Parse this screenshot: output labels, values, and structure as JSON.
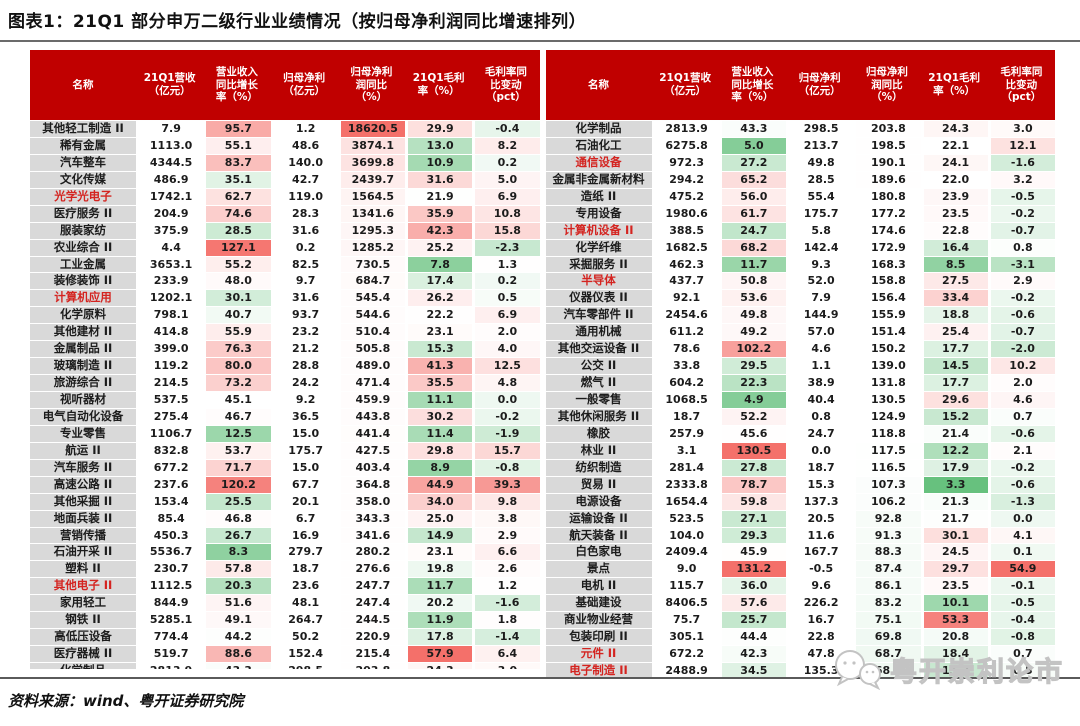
{
  "title": "图表1：21Q1 部分申万二级行业业绩情况（按归母净利润同比增速排列）",
  "source": "资料来源：wind、粤开证券研究院",
  "watermark": "粤开崇利论市",
  "columns": [
    "名称",
    "21Q1营收\n（亿元）",
    "营业收入\n同比增长\n率（%）",
    "归母净利\n（亿元）",
    "归母净利\n润同比\n（%）",
    "21Q1毛利\n率（%）",
    "毛利率同\n比变动\n（pct）"
  ],
  "colors": {
    "header_bg": "#c00000",
    "name_bg": "#d9d9d9",
    "highlight_name_text": "#d42420",
    "heat_red": "#f4706a",
    "heat_green": "#67c17e"
  },
  "heatmap": {
    "note": "value-index -> color scale (green below mid, red above mid)",
    "columns": {
      "1": {
        "min": -5,
        "mid": 45,
        "max": 131.2
      },
      "3": {
        "min": -400,
        "mid": 120,
        "max": 18620.5
      },
      "4": {
        "min": 3.3,
        "mid": 22,
        "max": 57.9
      },
      "5": {
        "min": -8,
        "mid": 1,
        "max": 54.9
      }
    }
  },
  "left_rows": [
    {
      "name": "其他轻工制造 II",
      "red": false,
      "values": [
        7.9,
        95.7,
        1.2,
        18620.5,
        29.9,
        -0.4
      ]
    },
    {
      "name": "稀有金属",
      "red": false,
      "values": [
        1113.0,
        55.1,
        48.6,
        3874.1,
        13.0,
        8.2
      ]
    },
    {
      "name": "汽车整车",
      "red": false,
      "values": [
        4344.5,
        83.7,
        140.0,
        3699.8,
        10.9,
        0.2
      ]
    },
    {
      "name": "文化传媒",
      "red": false,
      "values": [
        486.9,
        35.1,
        42.7,
        2439.7,
        31.6,
        5.0
      ]
    },
    {
      "name": "光学光电子",
      "red": true,
      "values": [
        1742.1,
        62.7,
        119.0,
        1564.5,
        21.9,
        6.9
      ]
    },
    {
      "name": "医疗服务 II",
      "red": false,
      "values": [
        204.9,
        74.6,
        28.3,
        1341.6,
        35.9,
        10.8
      ]
    },
    {
      "name": "服装家纺",
      "red": false,
      "values": [
        375.9,
        28.5,
        31.6,
        1295.3,
        42.3,
        15.8
      ]
    },
    {
      "name": "农业综合 II",
      "red": false,
      "values": [
        4.4,
        127.1,
        0.2,
        1285.2,
        25.2,
        -2.3
      ]
    },
    {
      "name": "工业金属",
      "red": false,
      "values": [
        3653.1,
        55.2,
        82.5,
        730.5,
        7.8,
        1.3
      ]
    },
    {
      "name": "装修装饰 II",
      "red": false,
      "values": [
        233.9,
        48.0,
        9.7,
        684.7,
        17.4,
        0.2
      ]
    },
    {
      "name": "计算机应用",
      "red": true,
      "values": [
        1202.1,
        30.1,
        31.6,
        545.4,
        26.2,
        0.5
      ]
    },
    {
      "name": "化学原料",
      "red": false,
      "values": [
        798.1,
        40.7,
        93.7,
        544.6,
        22.2,
        6.9
      ]
    },
    {
      "name": "其他建材 II",
      "red": false,
      "values": [
        414.8,
        55.9,
        23.2,
        510.4,
        23.1,
        2.0
      ]
    },
    {
      "name": "金属制品 II",
      "red": false,
      "values": [
        399.0,
        76.3,
        21.2,
        505.8,
        15.3,
        4.0
      ]
    },
    {
      "name": "玻璃制造 II",
      "red": false,
      "values": [
        119.2,
        80.0,
        28.8,
        489.0,
        41.3,
        12.5
      ]
    },
    {
      "name": "旅游综合 II",
      "red": false,
      "values": [
        214.5,
        73.2,
        24.2,
        471.4,
        35.5,
        4.8
      ]
    },
    {
      "name": "视听器材",
      "red": false,
      "values": [
        537.5,
        45.1,
        9.2,
        459.9,
        11.1,
        0.0
      ]
    },
    {
      "name": "电气自动化设备",
      "red": false,
      "values": [
        275.4,
        46.7,
        36.5,
        443.8,
        30.2,
        -0.2
      ]
    },
    {
      "name": "专业零售",
      "red": false,
      "values": [
        1106.7,
        12.5,
        15.0,
        441.4,
        11.4,
        -1.9
      ]
    },
    {
      "name": "航运 II",
      "red": false,
      "values": [
        832.8,
        53.7,
        175.7,
        427.5,
        29.8,
        15.7
      ]
    },
    {
      "name": "汽车服务 II",
      "red": false,
      "values": [
        677.2,
        71.7,
        15.0,
        403.4,
        8.9,
        -0.8
      ]
    },
    {
      "name": "高速公路 II",
      "red": false,
      "values": [
        237.6,
        120.2,
        67.7,
        364.8,
        44.9,
        39.3
      ]
    },
    {
      "name": "其他采掘 II",
      "red": false,
      "values": [
        153.4,
        25.5,
        20.1,
        358.0,
        34.0,
        9.8
      ]
    },
    {
      "name": "地面兵装 II",
      "red": false,
      "values": [
        85.4,
        46.8,
        6.7,
        343.3,
        25.0,
        3.8
      ]
    },
    {
      "name": "营销传播",
      "red": false,
      "values": [
        450.3,
        26.7,
        16.9,
        341.6,
        14.9,
        2.9
      ]
    },
    {
      "name": "石油开采 II",
      "red": false,
      "values": [
        5536.7,
        8.3,
        279.7,
        280.2,
        23.1,
        6.6
      ]
    },
    {
      "name": "塑料 II",
      "red": false,
      "values": [
        230.7,
        57.8,
        18.7,
        276.6,
        19.8,
        2.6
      ]
    },
    {
      "name": "其他电子 II",
      "red": true,
      "values": [
        1112.5,
        20.3,
        23.6,
        247.7,
        11.7,
        1.2
      ]
    },
    {
      "name": "家用轻工",
      "red": false,
      "values": [
        844.9,
        51.6,
        48.1,
        247.4,
        20.2,
        -1.6
      ]
    },
    {
      "name": "钢铁 II",
      "red": false,
      "values": [
        5285.1,
        49.1,
        264.7,
        244.5,
        11.9,
        1.8
      ]
    },
    {
      "name": "高低压设备",
      "red": false,
      "values": [
        774.4,
        44.2,
        50.2,
        220.9,
        17.8,
        -1.4
      ]
    },
    {
      "name": "医疗器械 II",
      "red": false,
      "values": [
        519.7,
        88.6,
        152.4,
        215.4,
        57.9,
        6.4
      ]
    }
  ],
  "left_partial_row": {
    "name": "化学制品",
    "red": false,
    "values": [
      2813.9,
      43.3,
      298.5,
      203.8,
      24.3,
      3.0
    ]
  },
  "right_rows": [
    {
      "name": "化学制品",
      "red": false,
      "values": [
        2813.9,
        43.3,
        298.5,
        203.8,
        24.3,
        3.0
      ]
    },
    {
      "name": "石油化工",
      "red": false,
      "values": [
        6275.8,
        5.0,
        213.7,
        198.5,
        22.1,
        12.1
      ]
    },
    {
      "name": "通信设备",
      "red": true,
      "values": [
        972.3,
        27.2,
        49.8,
        190.1,
        24.1,
        -1.6
      ]
    },
    {
      "name": "金属非金属新材料",
      "red": false,
      "values": [
        294.2,
        65.2,
        28.5,
        189.6,
        22.0,
        3.2
      ]
    },
    {
      "name": "造纸 II",
      "red": false,
      "values": [
        475.2,
        56.0,
        55.4,
        180.8,
        23.9,
        -0.5
      ]
    },
    {
      "name": "专用设备",
      "red": false,
      "values": [
        1980.6,
        61.7,
        175.7,
        177.2,
        23.5,
        -0.2
      ]
    },
    {
      "name": "计算机设备 II",
      "red": true,
      "values": [
        388.5,
        24.7,
        5.8,
        174.6,
        22.8,
        -0.7
      ]
    },
    {
      "name": "化学纤维",
      "red": false,
      "values": [
        1682.5,
        68.2,
        142.4,
        172.9,
        16.4,
        0.8
      ]
    },
    {
      "name": "采掘服务 II",
      "red": false,
      "values": [
        462.3,
        11.7,
        9.3,
        168.3,
        8.5,
        -3.1
      ]
    },
    {
      "name": "半导体",
      "red": true,
      "values": [
        437.7,
        50.8,
        52.0,
        158.8,
        27.5,
        2.9
      ]
    },
    {
      "name": "仪器仪表 II",
      "red": false,
      "values": [
        92.1,
        53.6,
        7.9,
        156.4,
        33.4,
        -0.2
      ]
    },
    {
      "name": "汽车零部件 II",
      "red": false,
      "values": [
        2454.6,
        49.8,
        144.9,
        155.9,
        18.8,
        -0.6
      ]
    },
    {
      "name": "通用机械",
      "red": false,
      "values": [
        611.2,
        49.2,
        57.0,
        151.4,
        25.4,
        -0.7
      ]
    },
    {
      "name": "其他交运设备 II",
      "red": false,
      "values": [
        78.6,
        102.2,
        4.6,
        150.2,
        17.7,
        -2.0
      ]
    },
    {
      "name": "公交 II",
      "red": false,
      "values": [
        33.8,
        29.5,
        1.1,
        139.0,
        14.5,
        10.2
      ]
    },
    {
      "name": "燃气 II",
      "red": false,
      "values": [
        604.2,
        22.3,
        38.9,
        131.8,
        17.7,
        2.0
      ]
    },
    {
      "name": "一般零售",
      "red": false,
      "values": [
        1068.5,
        4.9,
        40.4,
        130.5,
        29.6,
        4.6
      ]
    },
    {
      "name": "其他休闲服务 II",
      "red": false,
      "values": [
        18.7,
        52.2,
        0.8,
        124.9,
        15.2,
        0.7
      ]
    },
    {
      "name": "橡胶",
      "red": false,
      "values": [
        257.9,
        45.6,
        24.7,
        118.8,
        21.4,
        -0.6
      ]
    },
    {
      "name": "林业 II",
      "red": false,
      "values": [
        3.1,
        130.5,
        0.0,
        117.5,
        12.2,
        2.1
      ]
    },
    {
      "name": "纺织制造",
      "red": false,
      "values": [
        281.4,
        27.8,
        18.7,
        116.5,
        17.9,
        -0.2
      ]
    },
    {
      "name": "贸易 II",
      "red": false,
      "values": [
        2333.8,
        78.7,
        15.3,
        107.3,
        3.3,
        -0.6
      ]
    },
    {
      "name": "电源设备",
      "red": false,
      "values": [
        1654.4,
        59.8,
        137.3,
        106.2,
        21.3,
        -1.3
      ]
    },
    {
      "name": "运输设备 II",
      "red": false,
      "values": [
        523.5,
        27.1,
        20.5,
        92.8,
        21.7,
        0.0
      ]
    },
    {
      "name": "航天装备 II",
      "red": false,
      "values": [
        104.0,
        29.3,
        11.6,
        91.3,
        30.1,
        4.1
      ]
    },
    {
      "name": "白色家电",
      "red": false,
      "values": [
        2409.4,
        45.9,
        167.7,
        88.3,
        24.5,
        0.1
      ]
    },
    {
      "name": "景点",
      "red": false,
      "values": [
        9.0,
        131.2,
        -0.5,
        87.4,
        29.7,
        54.9
      ]
    },
    {
      "name": "电机 II",
      "red": false,
      "values": [
        115.7,
        36.0,
        9.6,
        86.1,
        23.5,
        -0.1
      ]
    },
    {
      "name": "基础建设",
      "red": false,
      "values": [
        8406.5,
        57.6,
        226.2,
        83.2,
        10.1,
        -0.5
      ]
    },
    {
      "name": "商业物业经营",
      "red": false,
      "values": [
        75.7,
        25.7,
        16.7,
        75.1,
        53.3,
        -0.4
      ]
    },
    {
      "name": "包装印刷 II",
      "red": false,
      "values": [
        305.1,
        44.4,
        22.8,
        69.8,
        20.8,
        -0.8
      ]
    },
    {
      "name": "元件 II",
      "red": true,
      "values": [
        672.2,
        42.3,
        47.8,
        68.7,
        18.4,
        0.7
      ]
    },
    {
      "name": "电子制造 II",
      "red": true,
      "values": [
        2488.9,
        34.5,
        135.3,
        68.0,
        15.2,
        0.5
      ]
    }
  ]
}
